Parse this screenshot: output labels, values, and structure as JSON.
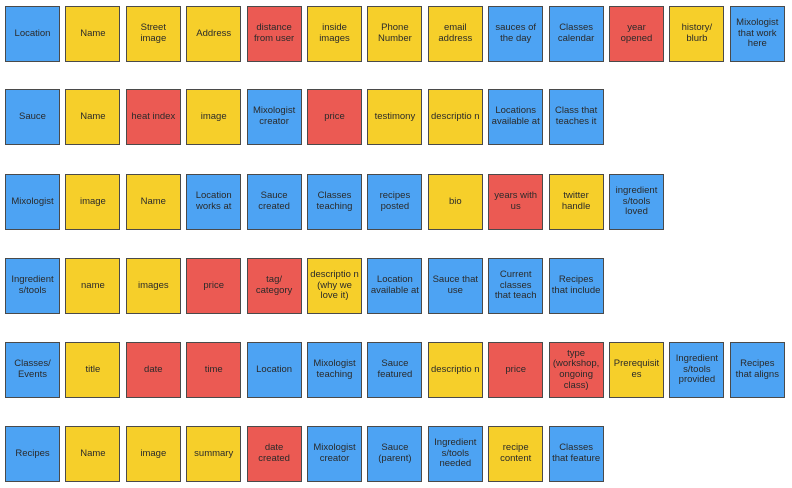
{
  "colors": {
    "blue": "#4da3f3",
    "yellow": "#f6cf2a",
    "red": "#eb5a53"
  },
  "rows": [
    {
      "cards": [
        {
          "text": "Location",
          "color": "blue"
        },
        {
          "text": "Name",
          "color": "yellow"
        },
        {
          "text": "Street image",
          "color": "yellow"
        },
        {
          "text": "Address",
          "color": "yellow"
        },
        {
          "text": "distance from user",
          "color": "red"
        },
        {
          "text": "inside images",
          "color": "yellow"
        },
        {
          "text": "Phone Number",
          "color": "yellow"
        },
        {
          "text": "email address",
          "color": "yellow"
        },
        {
          "text": "sauces of the day",
          "color": "blue"
        },
        {
          "text": "Classes calendar",
          "color": "blue"
        },
        {
          "text": "year opened",
          "color": "red"
        },
        {
          "text": "history/ blurb",
          "color": "yellow"
        },
        {
          "text": "Mixologist that work here",
          "color": "blue"
        }
      ]
    },
    {
      "cards": [
        {
          "text": "Sauce",
          "color": "blue"
        },
        {
          "text": "Name",
          "color": "yellow"
        },
        {
          "text": "heat index",
          "color": "red"
        },
        {
          "text": "image",
          "color": "yellow"
        },
        {
          "text": "Mixologist creator",
          "color": "blue"
        },
        {
          "text": "price",
          "color": "red"
        },
        {
          "text": "testimony",
          "color": "yellow"
        },
        {
          "text": "descriptio n",
          "color": "yellow"
        },
        {
          "text": "Locations available at",
          "color": "blue"
        },
        {
          "text": "Class that teaches it",
          "color": "blue"
        }
      ]
    },
    {
      "cards": [
        {
          "text": "Mixologist",
          "color": "blue"
        },
        {
          "text": "image",
          "color": "yellow"
        },
        {
          "text": "Name",
          "color": "yellow"
        },
        {
          "text": "Location works at",
          "color": "blue"
        },
        {
          "text": "Sauce created",
          "color": "blue"
        },
        {
          "text": "Classes teaching",
          "color": "blue"
        },
        {
          "text": "recipes posted",
          "color": "blue"
        },
        {
          "text": "bio",
          "color": "yellow"
        },
        {
          "text": "years with us",
          "color": "red"
        },
        {
          "text": "twitter handle",
          "color": "yellow"
        },
        {
          "text": "ingredient s/tools loved",
          "color": "blue"
        }
      ]
    },
    {
      "cards": [
        {
          "text": "Ingredient s/tools",
          "color": "blue"
        },
        {
          "text": "name",
          "color": "yellow"
        },
        {
          "text": "images",
          "color": "yellow"
        },
        {
          "text": "price",
          "color": "red"
        },
        {
          "text": "tag/ category",
          "color": "red"
        },
        {
          "text": "descriptio n (why we love it)",
          "color": "yellow"
        },
        {
          "text": "Location available at",
          "color": "blue"
        },
        {
          "text": "Sauce that use",
          "color": "blue"
        },
        {
          "text": "Current classes that teach",
          "color": "blue"
        },
        {
          "text": "Recipes that include",
          "color": "blue"
        }
      ]
    },
    {
      "cards": [
        {
          "text": "Classes/ Events",
          "color": "blue"
        },
        {
          "text": "title",
          "color": "yellow"
        },
        {
          "text": "date",
          "color": "red"
        },
        {
          "text": "time",
          "color": "red"
        },
        {
          "text": "Location",
          "color": "blue"
        },
        {
          "text": "Mixologist teaching",
          "color": "blue"
        },
        {
          "text": "Sauce featured",
          "color": "blue"
        },
        {
          "text": "descriptio n",
          "color": "yellow"
        },
        {
          "text": "price",
          "color": "red"
        },
        {
          "text": "type (workshop, ongoing class)",
          "color": "red"
        },
        {
          "text": "Prerequisit es",
          "color": "yellow"
        },
        {
          "text": "Ingredient s/tools provided",
          "color": "blue"
        },
        {
          "text": "Recipes that aligns",
          "color": "blue"
        }
      ]
    },
    {
      "cards": [
        {
          "text": "Recipes",
          "color": "blue"
        },
        {
          "text": "Name",
          "color": "yellow"
        },
        {
          "text": "image",
          "color": "yellow"
        },
        {
          "text": "summary",
          "color": "yellow"
        },
        {
          "text": "date created",
          "color": "red"
        },
        {
          "text": "Mixologist creator",
          "color": "blue"
        },
        {
          "text": "Sauce (parent)",
          "color": "blue"
        },
        {
          "text": "Ingredient s/tools needed",
          "color": "blue"
        },
        {
          "text": "recipe content",
          "color": "yellow"
        },
        {
          "text": "Classes that feature",
          "color": "blue"
        }
      ]
    }
  ]
}
